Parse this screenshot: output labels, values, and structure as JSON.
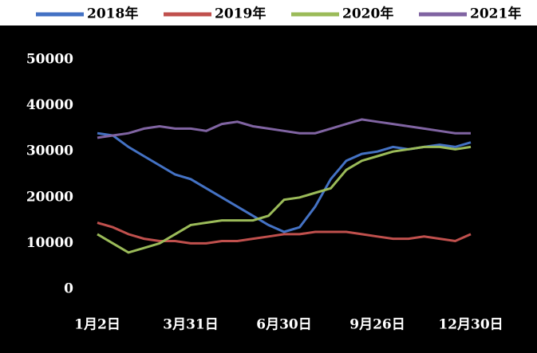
{
  "chart_data": {
    "type": "line",
    "categories": [
      "1月2日",
      null,
      null,
      null,
      null,
      null,
      "3月31日",
      null,
      null,
      null,
      null,
      null,
      "6月30日",
      null,
      null,
      null,
      null,
      null,
      "9月26日",
      null,
      null,
      null,
      null,
      null,
      "12月30日"
    ],
    "series": [
      {
        "name": "2018年",
        "color": "#4472c4",
        "values": [
          34000,
          33500,
          31000,
          29000,
          27000,
          25000,
          24000,
          22000,
          20000,
          18000,
          16000,
          14000,
          12500,
          13500,
          18000,
          24000,
          28000,
          29500,
          30000,
          31000,
          30500,
          31000,
          31500,
          31000,
          32000
        ]
      },
      {
        "name": "2019年",
        "color": "#c0504d",
        "values": [
          14500,
          13500,
          12000,
          11000,
          10500,
          10500,
          10000,
          10000,
          10500,
          10500,
          11000,
          11500,
          12000,
          12000,
          12500,
          12500,
          12500,
          12000,
          11500,
          11000,
          11000,
          11500,
          11000,
          10500,
          12000
        ]
      },
      {
        "name": "2020年",
        "color": "#9bbb59",
        "values": [
          12000,
          10000,
          8000,
          9000,
          10000,
          12000,
          14000,
          14500,
          15000,
          15000,
          15000,
          16000,
          19500,
          20000,
          21000,
          22000,
          26000,
          28000,
          29000,
          30000,
          30500,
          31000,
          31000,
          30500,
          31000
        ]
      },
      {
        "name": "2021年",
        "color": "#8064a2",
        "values": [
          33000,
          33500,
          34000,
          35000,
          35500,
          35000,
          35000,
          34500,
          36000,
          36500,
          35500,
          35000,
          34500,
          34000,
          34000,
          35000,
          36000,
          37000,
          36500,
          36000,
          35500,
          35000,
          34500,
          34000,
          34000
        ]
      }
    ],
    "ylim": [
      0,
      50000
    ],
    "yticks": [
      0,
      10000,
      20000,
      30000,
      40000,
      50000
    ]
  }
}
